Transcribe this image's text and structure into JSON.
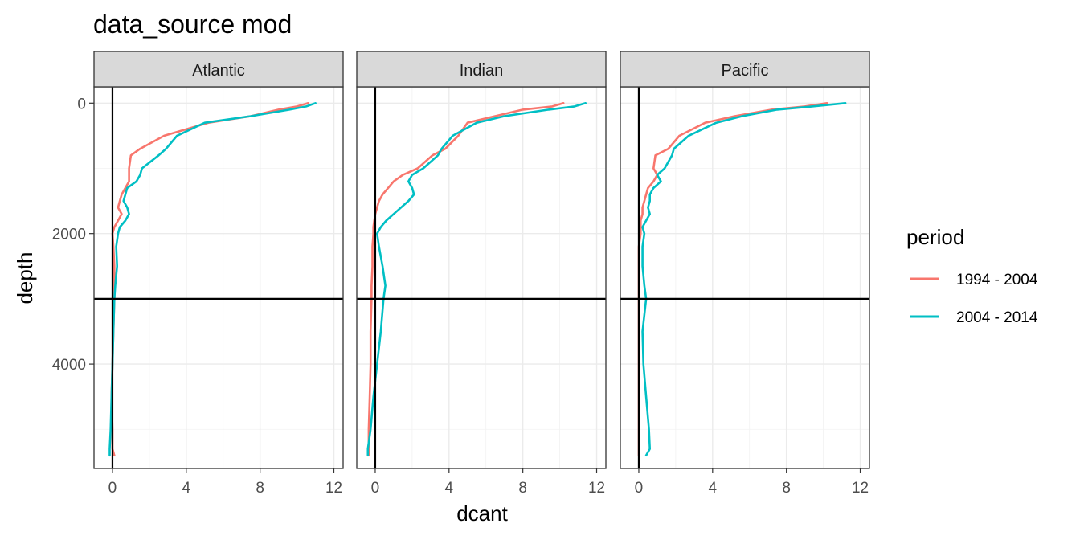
{
  "chart_data": {
    "type": "line",
    "title": "data_source mod",
    "xlabel": "dcant",
    "ylabel": "depth",
    "xlim": [
      -1,
      12.5
    ],
    "ylim": [
      5600,
      -250
    ],
    "y_reversed": true,
    "x_ticks": [
      0,
      4,
      8,
      12
    ],
    "y_ticks": [
      0,
      2000,
      4000
    ],
    "hline": 3000,
    "vline": 0,
    "grid": true,
    "legend": {
      "title": "period",
      "position": "right",
      "entries": [
        {
          "label": "1994 - 2004",
          "color": "#F8766D"
        },
        {
          "label": "2004 - 2014",
          "color": "#00BFC4"
        }
      ]
    },
    "depths": [
      0,
      50,
      100,
      200,
      300,
      500,
      700,
      800,
      1000,
      1100,
      1200,
      1300,
      1400,
      1500,
      1600,
      1700,
      1800,
      1900,
      2000,
      2200,
      2500,
      2800,
      3000,
      3500,
      4000,
      4500,
      5000,
      5300,
      5400
    ],
    "panels": [
      {
        "label": "Atlantic",
        "series": [
          {
            "name": "1994 - 2004",
            "values": [
              10.6,
              10.0,
              9.0,
              7.5,
              5.2,
              2.8,
              1.5,
              1.0,
              0.9,
              0.9,
              0.9,
              0.7,
              0.5,
              0.4,
              0.3,
              0.5,
              0.3,
              0.1,
              0.0,
              0.05,
              0.1,
              0.1,
              0.1,
              0.05,
              0.0,
              -0.05,
              0.0,
              0.0,
              0.1
            ]
          },
          {
            "name": "2004 - 2014",
            "values": [
              11.0,
              10.5,
              9.6,
              7.5,
              5.0,
              3.5,
              2.9,
              2.5,
              1.6,
              1.5,
              1.3,
              0.8,
              0.7,
              0.6,
              0.8,
              0.9,
              0.7,
              0.4,
              0.3,
              0.2,
              0.25,
              0.15,
              0.1,
              0.05,
              0.0,
              -0.05,
              -0.1,
              -0.15,
              -0.15
            ]
          }
        ]
      },
      {
        "label": "Indian",
        "series": [
          {
            "name": "1994 - 2004",
            "values": [
              10.2,
              9.6,
              8.0,
              6.5,
              5.0,
              4.5,
              3.8,
              3.1,
              2.3,
              1.5,
              1.0,
              0.7,
              0.4,
              0.2,
              0.1,
              0.0,
              -0.05,
              -0.1,
              -0.1,
              -0.15,
              -0.15,
              -0.2,
              -0.2,
              -0.25,
              -0.25,
              -0.3,
              -0.35,
              -0.35,
              -0.35
            ]
          },
          {
            "name": "2004 - 2014",
            "values": [
              11.4,
              10.8,
              9.4,
              7.0,
              5.5,
              4.2,
              3.6,
              3.4,
              2.6,
              2.0,
              1.8,
              2.0,
              2.1,
              1.8,
              1.4,
              1.0,
              0.6,
              0.3,
              0.1,
              0.2,
              0.4,
              0.55,
              0.45,
              0.3,
              0.1,
              -0.1,
              -0.25,
              -0.4,
              -0.4
            ]
          }
        ]
      },
      {
        "label": "Pacific",
        "series": [
          {
            "name": "1994 - 2004",
            "values": [
              10.2,
              9.0,
              7.2,
              5.2,
              3.6,
              2.2,
              1.6,
              0.9,
              0.8,
              1.0,
              0.8,
              0.5,
              0.4,
              0.3,
              0.2,
              0.2,
              0.1,
              0.1,
              0.1,
              0.0,
              0.0,
              0.0,
              0.0,
              0.0,
              0.0,
              0.0,
              0.0,
              0.0,
              0.0
            ]
          },
          {
            "name": "2004 - 2014",
            "values": [
              11.2,
              9.4,
              7.5,
              5.6,
              4.2,
              2.7,
              1.9,
              1.8,
              1.4,
              1.0,
              1.2,
              0.8,
              0.6,
              0.6,
              0.5,
              0.6,
              0.4,
              0.2,
              0.3,
              0.2,
              0.2,
              0.3,
              0.4,
              0.2,
              0.25,
              0.4,
              0.55,
              0.6,
              0.4
            ]
          }
        ]
      }
    ]
  }
}
